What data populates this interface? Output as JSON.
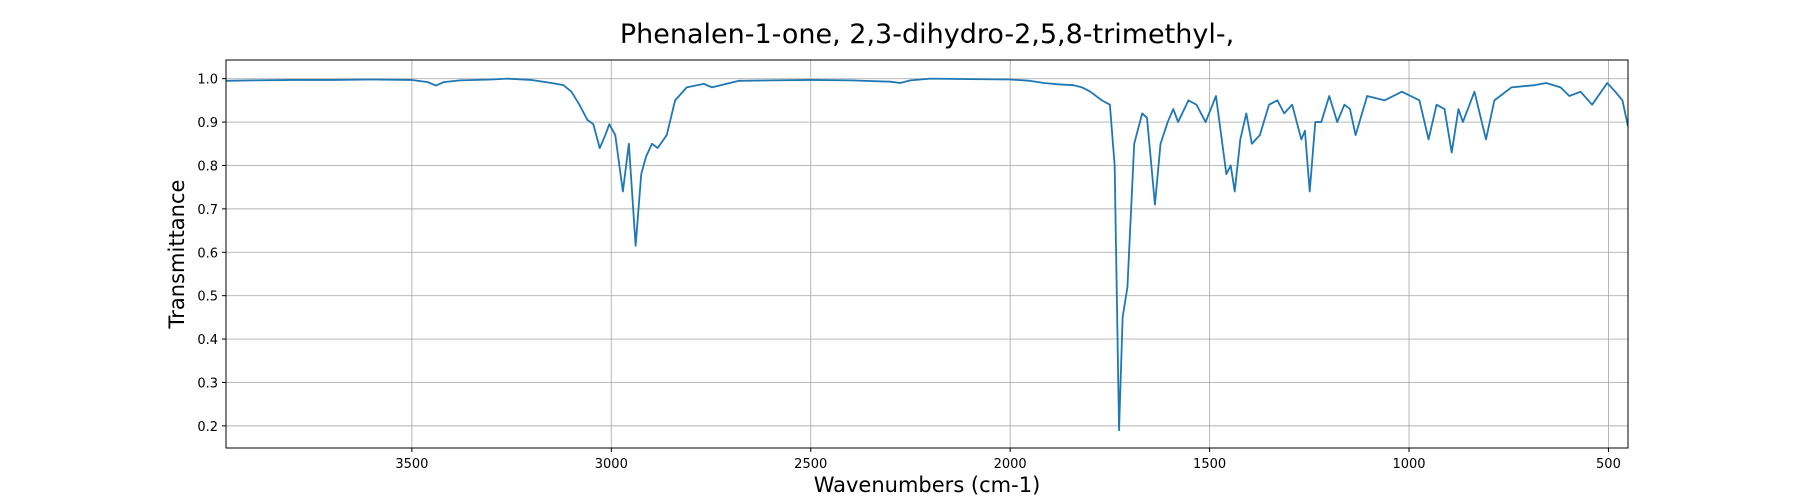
{
  "chart_data": {
    "type": "line",
    "title": "Phenalen-1-one, 2,3-dihydro-2,5,8-trimethyl-,",
    "x_label": "Wavenumbers (cm-1)",
    "y_label": "Transmittance",
    "x": [
      3966,
      3900,
      3800,
      3700,
      3600,
      3500,
      3460,
      3440,
      3420,
      3380,
      3300,
      3260,
      3200,
      3150,
      3120,
      3100,
      3080,
      3060,
      3045,
      3029,
      3015,
      3005,
      2990,
      2971,
      2956,
      2939,
      2925,
      2913,
      2898,
      2884,
      2861,
      2840,
      2811,
      2768,
      2748,
      2681,
      2600,
      2500,
      2400,
      2300,
      2276,
      2250,
      2200,
      2100,
      2000,
      1950,
      1915,
      1880,
      1842,
      1820,
      1799,
      1770,
      1750,
      1738,
      1727,
      1718,
      1706,
      1689,
      1669,
      1657,
      1637,
      1623,
      1605,
      1591,
      1579,
      1553,
      1533,
      1510,
      1484,
      1458,
      1447,
      1437,
      1423,
      1408,
      1394,
      1374,
      1351,
      1330,
      1313,
      1293,
      1270,
      1261,
      1249,
      1235,
      1220,
      1200,
      1180,
      1162,
      1148,
      1134,
      1105,
      1061,
      1018,
      974,
      951,
      931,
      911,
      893,
      876,
      865,
      836,
      807,
      786,
      743,
      685,
      656,
      620,
      598,
      570,
      541,
      503,
      483,
      465,
      451
    ],
    "series": [
      {
        "name": "Transmittance",
        "color": "#1f77b4",
        "values": [
          0.995,
          0.996,
          0.997,
          0.997,
          0.998,
          0.997,
          0.992,
          0.984,
          0.992,
          0.996,
          0.998,
          1.0,
          0.997,
          0.99,
          0.985,
          0.97,
          0.94,
          0.905,
          0.895,
          0.84,
          0.87,
          0.895,
          0.87,
          0.74,
          0.85,
          0.615,
          0.78,
          0.82,
          0.85,
          0.84,
          0.87,
          0.95,
          0.98,
          0.988,
          0.98,
          0.995,
          0.996,
          0.997,
          0.996,
          0.993,
          0.99,
          0.996,
          1.0,
          0.999,
          0.998,
          0.995,
          0.99,
          0.987,
          0.985,
          0.98,
          0.97,
          0.95,
          0.94,
          0.8,
          0.19,
          0.45,
          0.52,
          0.85,
          0.92,
          0.91,
          0.71,
          0.85,
          0.9,
          0.93,
          0.9,
          0.95,
          0.94,
          0.9,
          0.96,
          0.78,
          0.8,
          0.74,
          0.86,
          0.92,
          0.85,
          0.87,
          0.94,
          0.95,
          0.92,
          0.94,
          0.86,
          0.88,
          0.74,
          0.9,
          0.9,
          0.96,
          0.9,
          0.94,
          0.93,
          0.87,
          0.96,
          0.95,
          0.97,
          0.95,
          0.86,
          0.94,
          0.93,
          0.83,
          0.93,
          0.9,
          0.97,
          0.86,
          0.95,
          0.98,
          0.985,
          0.99,
          0.98,
          0.96,
          0.97,
          0.94,
          0.99,
          0.97,
          0.95,
          0.89
        ]
      }
    ],
    "xlim": [
      3966,
      451
    ],
    "ylim": [
      0.149,
      1.043
    ],
    "xticks": [
      3500,
      3000,
      2500,
      2000,
      1500,
      1000,
      500
    ],
    "yticks": [
      0.2,
      0.3,
      0.4,
      0.5,
      0.6,
      0.7,
      0.8,
      0.9,
      {
        "value": 1,
        "label": "1.0"
      }
    ],
    "grid": true
  }
}
